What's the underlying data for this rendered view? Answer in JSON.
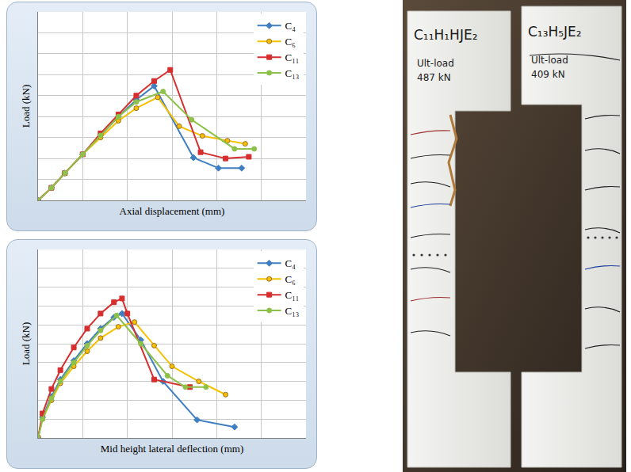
{
  "chart_data": [
    {
      "type": "line",
      "x_label": "Axial displacement (mm)",
      "y_label": "Load (kN)",
      "xlim": [
        0,
        6
      ],
      "xticks": [
        0,
        1,
        2,
        3,
        4,
        5,
        6
      ],
      "ylim": [
        0,
        9
      ],
      "yticks": [
        0,
        1,
        2,
        3,
        4,
        5,
        6,
        7,
        8,
        9
      ],
      "grid": true,
      "tick_labels": false,
      "legend": "top right",
      "series": [
        {
          "name": "C₄",
          "color": "#3f7fc1",
          "marker": "diamond",
          "line_style": "solid",
          "x": [
            0,
            0.3,
            0.6,
            1.0,
            1.4,
            1.8,
            2.2,
            2.6,
            3.48,
            4.04,
            4.56
          ],
          "values": [
            0,
            0.6,
            1.3,
            2.2,
            3.1,
            4.0,
            4.8,
            5.46,
            2.04,
            1.54,
            1.54
          ]
        },
        {
          "name": "C₆",
          "color": "#f5c000",
          "marker": "circle",
          "line_style": "solid",
          "x": [
            0,
            0.3,
            0.6,
            1.0,
            1.4,
            1.8,
            2.2,
            2.68,
            3.16,
            3.68,
            4.24,
            4.64
          ],
          "values": [
            0,
            0.6,
            1.3,
            2.2,
            3.0,
            3.8,
            4.4,
            4.92,
            3.54,
            3.08,
            2.85,
            2.7
          ]
        },
        {
          "name": "C₁₁",
          "color": "#d62e2e",
          "marker": "square",
          "line_style": "solid",
          "x": [
            0,
            0.3,
            0.6,
            1.0,
            1.4,
            1.8,
            2.2,
            2.6,
            2.96,
            3.64,
            4.2,
            4.72
          ],
          "values": [
            0,
            0.6,
            1.3,
            2.2,
            3.2,
            4.1,
            5.0,
            5.7,
            6.23,
            2.3,
            2.0,
            2.08
          ]
        },
        {
          "name": "C₁₃",
          "color": "#8dc149",
          "marker": "circle",
          "line_style": "solid",
          "x": [
            0,
            0.3,
            0.6,
            1.0,
            1.4,
            1.8,
            2.2,
            2.8,
            3.44,
            4.4,
            4.84
          ],
          "values": [
            0,
            0.6,
            1.3,
            2.2,
            3.1,
            4.0,
            4.7,
            5.2,
            3.85,
            2.46,
            2.46
          ]
        }
      ]
    },
    {
      "type": "line",
      "x_label": "Mid height lateral deflection (mm)",
      "y_label": "Load (kN)",
      "xlim": [
        0,
        6
      ],
      "xticks": [
        0,
        1,
        2,
        3,
        4,
        5,
        6
      ],
      "ylim": [
        0,
        10
      ],
      "yticks": [
        0,
        1,
        2,
        3,
        4,
        5,
        6,
        7,
        8,
        9,
        10
      ],
      "grid": true,
      "tick_labels": false,
      "legend": "top right",
      "series": [
        {
          "name": "C₄",
          "color": "#3f7fc1",
          "marker": "diamond",
          "line_style": "solid",
          "x": [
            0,
            0.1,
            0.3,
            0.5,
            0.8,
            1.1,
            1.4,
            1.7,
            1.88,
            2.3,
            2.8,
            3.56,
            4.4
          ],
          "values": [
            0,
            1.1,
            2.2,
            3.1,
            4.1,
            5.0,
            5.8,
            6.4,
            6.6,
            5.2,
            3.0,
            0.96,
            0.58
          ]
        },
        {
          "name": "C₆",
          "color": "#f5c000",
          "marker": "circle",
          "line_style": "solid",
          "x": [
            0,
            0.1,
            0.3,
            0.5,
            0.8,
            1.1,
            1.4,
            1.8,
            2.16,
            2.6,
            3.0,
            3.6,
            4.2
          ],
          "values": [
            0,
            1.0,
            2.0,
            2.9,
            3.8,
            4.6,
            5.3,
            5.9,
            6.15,
            4.9,
            3.8,
            3.0,
            2.3
          ]
        },
        {
          "name": "C₁₁",
          "color": "#d62e2e",
          "marker": "square",
          "line_style": "solid",
          "x": [
            0,
            0.1,
            0.3,
            0.5,
            0.8,
            1.1,
            1.4,
            1.7,
            1.88,
            2.0,
            2.6,
            3.4
          ],
          "values": [
            0,
            1.3,
            2.6,
            3.6,
            4.8,
            5.8,
            6.6,
            7.2,
            7.4,
            6.6,
            3.1,
            2.7
          ]
        },
        {
          "name": "C₁₃",
          "color": "#8dc149",
          "marker": "circle",
          "line_style": "solid",
          "x": [
            0,
            0.1,
            0.3,
            0.5,
            0.8,
            1.1,
            1.4,
            1.76,
            2.3,
            2.9,
            3.3,
            3.76
          ],
          "values": [
            0,
            1.0,
            2.1,
            3.0,
            4.0,
            4.9,
            5.7,
            6.5,
            5.0,
            3.3,
            2.7,
            2.7
          ]
        }
      ]
    }
  ],
  "photograph": {
    "specimens": [
      {
        "label": "C₁₁H₁HJE₂",
        "note": "Ult-load",
        "load": "487 kN"
      },
      {
        "label": "C₁₃H₅JE₂",
        "note": "Ult-load",
        "load": "409 kN"
      }
    ]
  }
}
